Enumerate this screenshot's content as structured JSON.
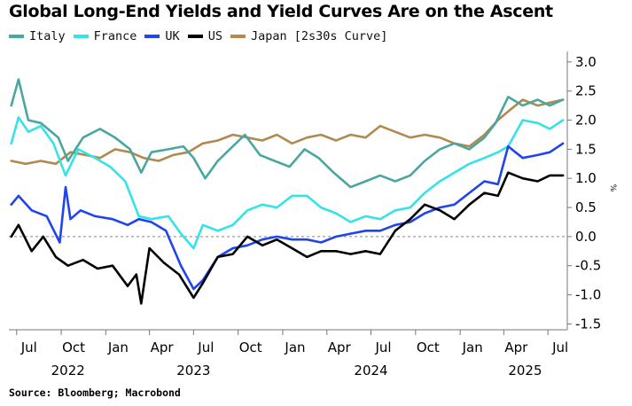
{
  "title": "Global Long-End Yields and Yield Curves Are on the Ascent",
  "source": "Source: Bloomberg; Macrobond",
  "colors": {
    "italy": "#4aa6a0",
    "france": "#33e3e8",
    "uk": "#1f44f0",
    "us": "#000000",
    "japan": "#b08a4e",
    "axis": "#777777",
    "zero_line": "#888888"
  },
  "chart_data": {
    "type": "line",
    "title": "Global Long-End Yields and Yield Curves Are on the Ascent",
    "xlabel": "",
    "ylabel": "%",
    "ylim": [
      -1.6,
      3.15
    ],
    "y_ticks": [
      "3.0",
      "2.5",
      "2.0",
      "1.5",
      "1.0",
      "0.5",
      "0.0",
      "-0.5",
      "-1.0",
      "-1.5"
    ],
    "y_tick_values": [
      3.0,
      2.5,
      2.0,
      1.5,
      1.0,
      0.5,
      0.0,
      -0.5,
      -1.0,
      -1.5
    ],
    "x_range": [
      "2022-06-15",
      "2025-08-10"
    ],
    "x_month_ticks": [
      "Jul",
      "Oct",
      "Jan",
      "Apr",
      "Jul",
      "Oct",
      "Jan",
      "Apr",
      "Jul",
      "Oct",
      "Jan",
      "Apr",
      "Jul"
    ],
    "x_month_dates": [
      "2022-07-01",
      "2022-10-01",
      "2023-01-01",
      "2023-04-01",
      "2023-07-01",
      "2023-10-01",
      "2024-01-01",
      "2024-04-01",
      "2024-07-01",
      "2024-10-01",
      "2025-01-01",
      "2025-04-01",
      "2025-07-01"
    ],
    "x_year_ticks": [
      "2022",
      "2023",
      "2024",
      "2025"
    ],
    "x_year_dates": [
      "2022-10-15",
      "2023-07-01",
      "2024-07-01",
      "2025-05-15"
    ],
    "legend_position": "top-left",
    "grid": false,
    "series": [
      {
        "name": "Italy",
        "key": "italy",
        "x": [
          "2022-06-20",
          "2022-07-05",
          "2022-07-25",
          "2022-08-20",
          "2022-09-25",
          "2022-10-15",
          "2022-11-15",
          "2022-12-20",
          "2023-01-20",
          "2023-02-20",
          "2023-03-15",
          "2023-04-05",
          "2023-05-10",
          "2023-06-10",
          "2023-07-01",
          "2023-07-25",
          "2023-08-20",
          "2023-09-20",
          "2023-10-15",
          "2023-11-15",
          "2023-12-15",
          "2024-01-15",
          "2024-02-15",
          "2024-03-15",
          "2024-04-15",
          "2024-05-20",
          "2024-06-20",
          "2024-07-20",
          "2024-08-20",
          "2024-09-20",
          "2024-10-20",
          "2024-11-20",
          "2024-12-20",
          "2025-01-20",
          "2025-02-20",
          "2025-03-15",
          "2025-04-10",
          "2025-05-10",
          "2025-06-10",
          "2025-07-05",
          "2025-08-01"
        ],
        "y": [
          2.25,
          2.7,
          2.0,
          1.95,
          1.7,
          1.3,
          1.7,
          1.85,
          1.7,
          1.5,
          1.1,
          1.45,
          1.5,
          1.55,
          1.35,
          1.0,
          1.3,
          1.55,
          1.75,
          1.4,
          1.3,
          1.2,
          1.5,
          1.35,
          1.1,
          0.85,
          0.95,
          1.05,
          0.95,
          1.05,
          1.3,
          1.5,
          1.6,
          1.5,
          1.7,
          1.95,
          2.4,
          2.25,
          2.35,
          2.25,
          2.35
        ]
      },
      {
        "name": "France",
        "key": "france",
        "x": [
          "2022-06-20",
          "2022-07-05",
          "2022-07-25",
          "2022-08-20",
          "2022-09-15",
          "2022-10-10",
          "2022-11-05",
          "2022-12-10",
          "2023-01-10",
          "2023-02-10",
          "2023-03-10",
          "2023-04-05",
          "2023-05-10",
          "2023-06-05",
          "2023-07-01",
          "2023-07-20",
          "2023-08-20",
          "2023-09-20",
          "2023-10-20",
          "2023-11-20",
          "2023-12-20",
          "2024-01-20",
          "2024-02-20",
          "2024-03-20",
          "2024-04-20",
          "2024-05-20",
          "2024-06-20",
          "2024-07-20",
          "2024-08-20",
          "2024-09-20",
          "2024-10-20",
          "2024-11-20",
          "2024-12-20",
          "2025-01-20",
          "2025-02-20",
          "2025-03-20",
          "2025-04-10",
          "2025-05-10",
          "2025-06-10",
          "2025-07-05",
          "2025-08-01"
        ],
        "y": [
          1.6,
          2.05,
          1.8,
          1.9,
          1.6,
          1.05,
          1.5,
          1.35,
          1.2,
          0.95,
          0.35,
          0.3,
          0.35,
          0.05,
          -0.2,
          0.2,
          0.1,
          0.2,
          0.45,
          0.55,
          0.5,
          0.7,
          0.7,
          0.5,
          0.4,
          0.25,
          0.35,
          0.3,
          0.45,
          0.5,
          0.75,
          0.95,
          1.1,
          1.25,
          1.35,
          1.45,
          1.55,
          2.0,
          1.95,
          1.85,
          2.0
        ]
      },
      {
        "name": "UK",
        "key": "uk",
        "x": [
          "2022-06-20",
          "2022-07-05",
          "2022-08-01",
          "2022-09-01",
          "2022-09-28",
          "2022-10-10",
          "2022-10-20",
          "2022-11-10",
          "2022-12-10",
          "2023-01-15",
          "2023-02-15",
          "2023-03-10",
          "2023-04-05",
          "2023-05-05",
          "2023-06-05",
          "2023-07-01",
          "2023-07-20",
          "2023-08-20",
          "2023-09-20",
          "2023-10-20",
          "2023-11-20",
          "2023-12-20",
          "2024-01-20",
          "2024-02-20",
          "2024-03-20",
          "2024-04-20",
          "2024-05-20",
          "2024-06-20",
          "2024-07-20",
          "2024-08-20",
          "2024-09-20",
          "2024-10-20",
          "2024-11-20",
          "2024-12-20",
          "2025-01-20",
          "2025-02-20",
          "2025-03-20",
          "2025-04-10",
          "2025-05-10",
          "2025-06-10",
          "2025-07-05",
          "2025-08-01"
        ],
        "y": [
          0.55,
          0.7,
          0.45,
          0.35,
          -0.1,
          0.85,
          0.3,
          0.45,
          0.35,
          0.3,
          0.2,
          0.3,
          0.25,
          0.1,
          -0.5,
          -0.9,
          -0.75,
          -0.35,
          -0.2,
          -0.15,
          -0.05,
          0.0,
          -0.05,
          -0.05,
          -0.1,
          0.0,
          0.05,
          0.1,
          0.1,
          0.2,
          0.25,
          0.4,
          0.5,
          0.55,
          0.75,
          0.95,
          0.9,
          1.55,
          1.35,
          1.4,
          1.45,
          1.6
        ]
      },
      {
        "name": "US",
        "key": "us",
        "x": [
          "2022-06-20",
          "2022-07-05",
          "2022-08-01",
          "2022-08-25",
          "2022-09-20",
          "2022-10-15",
          "2022-11-15",
          "2022-12-15",
          "2023-01-15",
          "2023-02-15",
          "2023-03-05",
          "2023-03-15",
          "2023-04-01",
          "2023-05-01",
          "2023-06-01",
          "2023-07-01",
          "2023-07-20",
          "2023-08-20",
          "2023-09-20",
          "2023-10-20",
          "2023-11-20",
          "2023-12-20",
          "2024-01-20",
          "2024-02-20",
          "2024-03-20",
          "2024-04-20",
          "2024-05-20",
          "2024-06-20",
          "2024-07-20",
          "2024-08-20",
          "2024-09-20",
          "2024-10-20",
          "2024-11-20",
          "2024-12-20",
          "2025-01-20",
          "2025-02-20",
          "2025-03-20",
          "2025-04-10",
          "2025-05-10",
          "2025-06-10",
          "2025-07-05",
          "2025-08-01"
        ],
        "y": [
          0.0,
          0.2,
          -0.25,
          0.0,
          -0.35,
          -0.5,
          -0.4,
          -0.55,
          -0.5,
          -0.85,
          -0.65,
          -1.15,
          -0.2,
          -0.45,
          -0.65,
          -1.05,
          -0.8,
          -0.35,
          -0.3,
          0.0,
          -0.15,
          -0.05,
          -0.2,
          -0.35,
          -0.25,
          -0.25,
          -0.3,
          -0.25,
          -0.3,
          0.1,
          0.3,
          0.55,
          0.45,
          0.3,
          0.55,
          0.75,
          0.7,
          1.1,
          1.0,
          0.95,
          1.05,
          1.05
        ]
      },
      {
        "name": "Japan [2s30s Curve]",
        "key": "japan",
        "x": [
          "2022-06-20",
          "2022-07-20",
          "2022-08-20",
          "2022-09-20",
          "2022-10-20",
          "2022-11-20",
          "2022-12-20",
          "2023-01-20",
          "2023-02-20",
          "2023-03-20",
          "2023-04-20",
          "2023-05-20",
          "2023-06-20",
          "2023-07-20",
          "2023-08-20",
          "2023-09-20",
          "2023-10-20",
          "2023-11-20",
          "2023-12-20",
          "2024-01-20",
          "2024-02-20",
          "2024-03-20",
          "2024-04-20",
          "2024-05-20",
          "2024-06-20",
          "2024-07-20",
          "2024-08-20",
          "2024-09-20",
          "2024-10-20",
          "2024-11-20",
          "2024-12-20",
          "2025-01-20",
          "2025-02-20",
          "2025-03-20",
          "2025-04-10",
          "2025-05-10",
          "2025-06-10",
          "2025-07-05",
          "2025-08-01"
        ],
        "y": [
          1.3,
          1.25,
          1.3,
          1.25,
          1.45,
          1.4,
          1.35,
          1.5,
          1.45,
          1.35,
          1.3,
          1.4,
          1.45,
          1.6,
          1.65,
          1.75,
          1.7,
          1.65,
          1.75,
          1.6,
          1.7,
          1.75,
          1.65,
          1.75,
          1.7,
          1.9,
          1.8,
          1.7,
          1.75,
          1.7,
          1.6,
          1.55,
          1.75,
          2.0,
          2.15,
          2.35,
          2.25,
          2.3,
          2.35
        ]
      }
    ]
  }
}
